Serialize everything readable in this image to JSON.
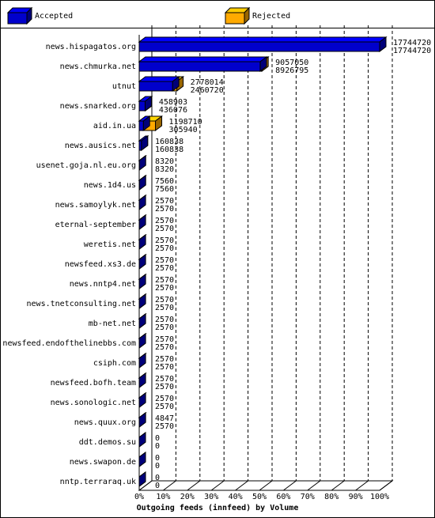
{
  "chart_data": {
    "type": "bar3d",
    "orientation": "horizontal",
    "xlabel": "Outgoing feeds (innfeed) by Volume",
    "categories": [
      "news.hispagatos.org",
      "news.chmurka.net",
      "utnut",
      "news.snarked.org",
      "aid.in.ua",
      "news.ausics.net",
      "usenet.goja.nl.eu.org",
      "news.1d4.us",
      "news.samoylyk.net",
      "eternal-september",
      "weretis.net",
      "newsfeed.xs3.de",
      "news.nntp4.net",
      "news.tnetconsulting.net",
      "mb-net.net",
      "newsfeed.endofthelinebbs.com",
      "csiph.com",
      "newsfeed.bofh.team",
      "news.sonologic.net",
      "news.quux.org",
      "ddt.demos.su",
      "news.swapon.de",
      "nntp.terraraq.uk"
    ],
    "series": [
      {
        "name": "Accepted",
        "color": "#0000cc",
        "values": [
          17744720,
          8926795,
          2460720,
          436076,
          305940,
          160838,
          8320,
          7560,
          2570,
          2570,
          2570,
          2570,
          2570,
          2570,
          2570,
          2570,
          2570,
          2570,
          2570,
          2570,
          0,
          0,
          0
        ]
      },
      {
        "name": "Rejected",
        "color": "#ffaa00",
        "values": [
          17744720,
          9057050,
          2778014,
          458903,
          1198710,
          160838,
          8320,
          7560,
          2570,
          2570,
          2570,
          2570,
          2570,
          2570,
          2570,
          2570,
          2570,
          2570,
          2570,
          4847,
          0,
          0,
          0
        ]
      }
    ],
    "xlim": [
      0,
      17744720
    ],
    "xticks": [
      {
        "value": 0,
        "label": "0%"
      },
      {
        "value": 1774472,
        "label": "10%"
      },
      {
        "value": 3548944,
        "label": "20%"
      },
      {
        "value": 5323416,
        "label": "30%"
      },
      {
        "value": 7097888,
        "label": "40%"
      },
      {
        "value": 8872360,
        "label": "50%"
      },
      {
        "value": 10646832,
        "label": "60%"
      },
      {
        "value": 12421304,
        "label": "70%"
      },
      {
        "value": 14195776,
        "label": "80%"
      },
      {
        "value": 15970248,
        "label": "90%"
      },
      {
        "value": 17744720,
        "label": "100%"
      }
    ],
    "grid": true
  }
}
